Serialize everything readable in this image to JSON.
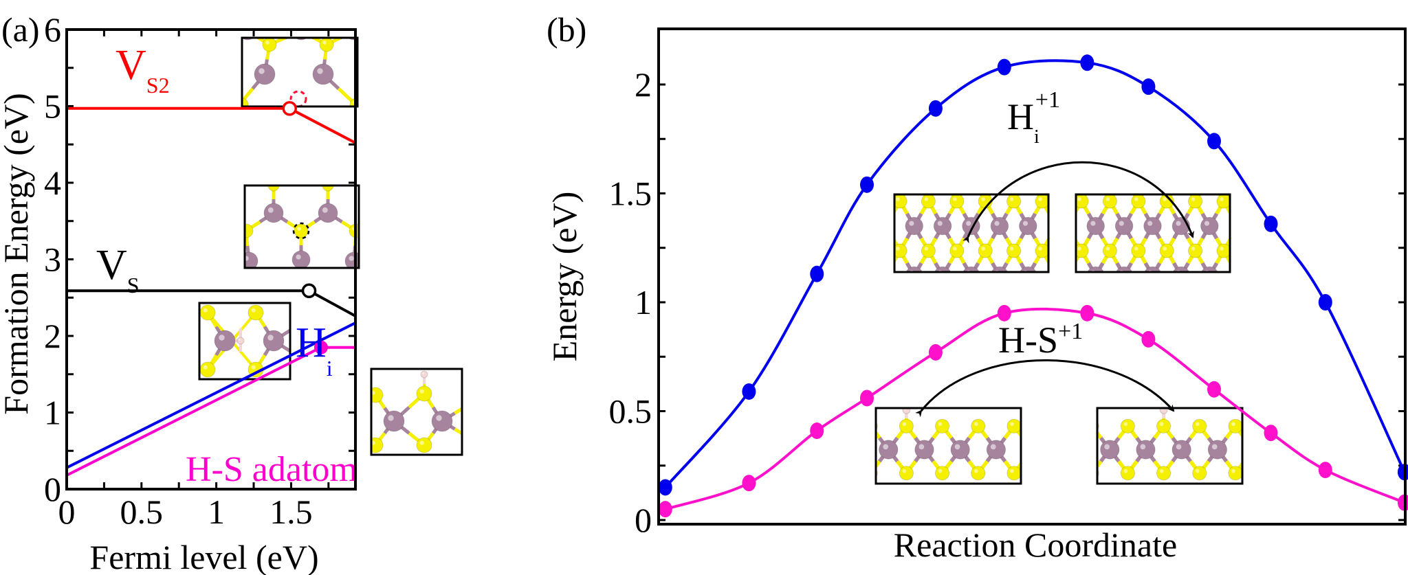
{
  "chart_data": [
    {
      "panel": "(a)",
      "type": "line",
      "title": "",
      "xlabel": "Fermi level (eV)",
      "ylabel": "Formation Energy (eV)",
      "xlim": [
        0,
        1.93
      ],
      "ylim": [
        0,
        6
      ],
      "xticks": [
        0,
        0.5,
        1,
        1.5
      ],
      "xtick_labels": [
        "0",
        "0.5",
        "1",
        "1.5"
      ],
      "yticks": [
        0,
        1,
        2,
        3,
        4,
        5,
        6
      ],
      "ytick_labels": [
        "0",
        "1",
        "2",
        "3",
        "4",
        "5",
        "6"
      ],
      "grid": false,
      "series": [
        {
          "name": "V_S2",
          "label_main": "V",
          "label_sub": "S2",
          "color": "#ff0000",
          "x": [
            0,
            1.49,
            1.93
          ],
          "y": [
            4.97,
            4.97,
            4.52
          ],
          "transition_marker": {
            "x": 1.49,
            "y": 4.97,
            "style": "open-circle"
          }
        },
        {
          "name": "V_S",
          "label_main": "V",
          "label_sub": "S",
          "color": "#000000",
          "x": [
            0,
            1.62,
            1.93
          ],
          "y": [
            2.59,
            2.59,
            2.26
          ],
          "transition_marker": {
            "x": 1.62,
            "y": 2.59,
            "style": "open-circle"
          }
        },
        {
          "name": "H_i",
          "label_main": "H",
          "label_sub": "i",
          "color": "#0000ee",
          "x": [
            0,
            1.93
          ],
          "y": [
            0.28,
            2.17
          ]
        },
        {
          "name": "H-S adatom",
          "label_main": "H-S adatom",
          "label_sub": "",
          "color": "#ff00cc",
          "x": [
            0,
            1.7,
            1.93
          ],
          "y": [
            0.18,
            1.85,
            1.85
          ],
          "transition_marker": {
            "x": 1.7,
            "y": 1.85,
            "style": "filled-circle"
          }
        }
      ],
      "insets": [
        {
          "name": "vs2-structure-inset",
          "depicts": "top view MoS2 with double sulfur vacancy (red dashed circle)"
        },
        {
          "name": "vs-structure-inset",
          "depicts": "top view MoS2 with sulfur vacancy (black dashed circle)"
        },
        {
          "name": "hi-structure-inset",
          "depicts": "side view MoS2 with interstitial hydrogen"
        },
        {
          "name": "hs-adatom-structure-inset",
          "depicts": "side view MoS2 with H bonded on top of S"
        }
      ]
    },
    {
      "panel": "(b)",
      "type": "line",
      "title": "",
      "xlabel": "Reaction Coordinate",
      "ylabel": "Energy (eV)",
      "xlim": [
        0,
        1
      ],
      "ylim": [
        0,
        2.21
      ],
      "yticks": [
        0,
        0.5,
        1,
        1.5,
        2
      ],
      "ytick_labels": [
        "0",
        "0.5",
        "1",
        "1.5",
        "2"
      ],
      "grid": false,
      "x": [
        0.009,
        0.121,
        0.212,
        0.279,
        0.371,
        0.463,
        0.574,
        0.656,
        0.744,
        0.82,
        0.893,
        0.999
      ],
      "series": [
        {
          "name": "H_i^+1",
          "label_main": "H",
          "label_sub": "i",
          "label_sup": "+1",
          "color": "#0000ee",
          "values": [
            0.15,
            0.59,
            1.13,
            1.54,
            1.89,
            2.08,
            2.1,
            1.99,
            1.74,
            1.36,
            1.0,
            0.22
          ]
        },
        {
          "name": "H-S^+1",
          "label_main": "H-S",
          "label_sub": "",
          "label_sup": "+1",
          "color": "#ff11cc",
          "values": [
            0.05,
            0.17,
            0.41,
            0.56,
            0.77,
            0.95,
            0.95,
            0.83,
            0.6,
            0.4,
            0.23,
            0.08
          ]
        }
      ],
      "insets": [
        {
          "name": "hi-initial-inset",
          "depicts": "top view MoS2 H interstitial initial site"
        },
        {
          "name": "hi-final-inset",
          "depicts": "top view MoS2 H interstitial final site"
        },
        {
          "name": "hs-initial-inset",
          "depicts": "side view MoS2 H on S initial site"
        },
        {
          "name": "hs-final-inset",
          "depicts": "side view MoS2 H on S final site"
        }
      ]
    }
  ],
  "panel_labels": {
    "a": "(a)",
    "b": "(b)"
  },
  "colors": {
    "mo": "#a7849d",
    "s": "#f4f000",
    "h": "#f3d6d6",
    "frame": "#000000"
  }
}
